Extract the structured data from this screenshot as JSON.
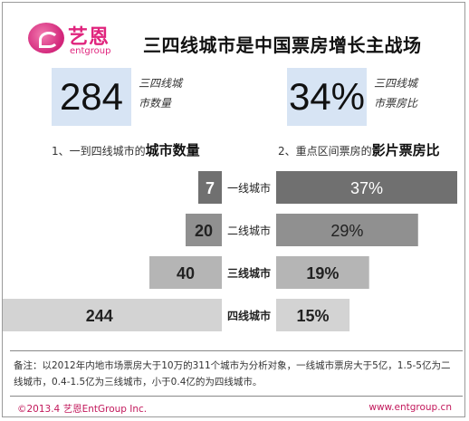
{
  "logo": {
    "cn": "艺恩",
    "en": "entgroup"
  },
  "title": "三四线城市是中国票房增长主战场",
  "stats": [
    {
      "value": "284",
      "label_line1": "三四线城",
      "label_line2": "市数量"
    },
    {
      "value": "34%",
      "label_line1": "三四线城",
      "label_line2": "市票房比"
    }
  ],
  "subheads": {
    "left_prefix": "1、一到四线城市的",
    "left_bold": "城市数量",
    "right_prefix": "2、重点区间票房的",
    "right_bold": "影片票房比"
  },
  "colors": {
    "tier1": "#707070",
    "tier2": "#909090",
    "tier3": "#b5b5b5",
    "tier4": "#d3d3d3",
    "stat_box": "#d7e4f4",
    "brand": "#e0247d"
  },
  "chart_data": [
    {
      "type": "bar",
      "orientation": "horizontal",
      "direction": "right-to-left",
      "categories": [
        "一线城市",
        "二线城市",
        "三线城市",
        "四线城市"
      ],
      "values": [
        7,
        20,
        40,
        244
      ],
      "labels": [
        "7",
        "20",
        "40",
        "244"
      ]
    },
    {
      "type": "bar",
      "orientation": "horizontal",
      "direction": "left-to-right",
      "categories": [
        "一线城市",
        "二线城市",
        "三线城市",
        "四线城市"
      ],
      "values": [
        37,
        29,
        19,
        15
      ],
      "labels": [
        "37%",
        "29%",
        "19%",
        "15%"
      ],
      "unit": "%"
    }
  ],
  "note": "备注：以2012年内地市场票房大于10万的311个城市为分析对象，一线城市票房大于5亿，1.5-5亿为二线城市，0.4-1.5亿为三线城市，小于0.4亿的为四线城市。",
  "footer": {
    "left": "©2013.4 艺恩EntGroup Inc.",
    "right": "www.entgroup.cn"
  }
}
